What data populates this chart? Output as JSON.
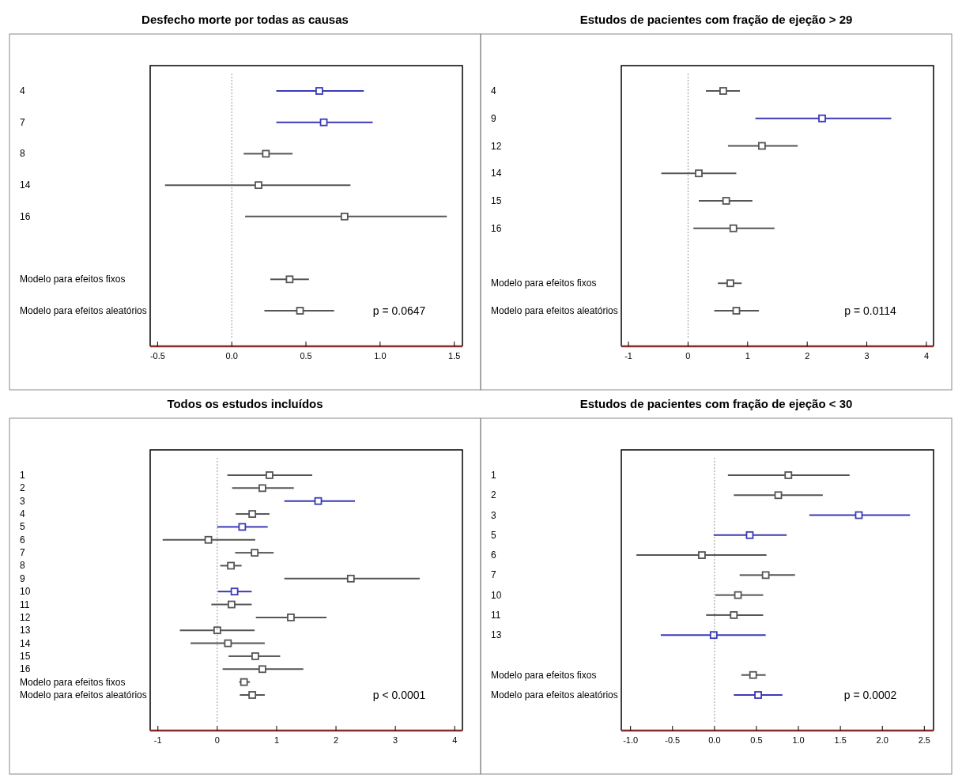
{
  "chart_data": [
    {
      "type": "scatter",
      "orientation": "horizontal",
      "title": "Desfecho morte por todas as causas",
      "marker": "square",
      "categories": [
        "4",
        "7",
        "8",
        "14",
        "16",
        null,
        "Modelo para efeitos fixos",
        "Modelo para efeitos aleatórios"
      ],
      "series": [
        {
          "color": "#3a3ab8",
          "values": [
            0.59,
            0.62,
            null,
            null,
            null,
            null,
            null,
            null
          ],
          "errors": [
            [
              0.3,
              0.89
            ],
            [
              0.3,
              0.95
            ],
            null,
            null,
            null,
            null,
            null,
            null
          ]
        },
        {
          "color": "#555555",
          "values": [
            null,
            null,
            0.23,
            0.18,
            0.76,
            null,
            0.39,
            0.46
          ],
          "errors": [
            null,
            null,
            [
              0.08,
              0.41
            ],
            [
              -0.45,
              0.8
            ],
            [
              0.09,
              1.45
            ],
            null,
            [
              0.26,
              0.52
            ],
            [
              0.22,
              0.69
            ]
          ]
        }
      ],
      "xlim": [
        -0.55,
        1.555
      ],
      "xticks": [
        -0.5,
        {
          "value": 0,
          "label": "0.0"
        },
        0.5,
        {
          "value": 1,
          "label": "1.0"
        },
        1.5
      ],
      "ref_lines": [
        {
          "axis": "x",
          "value": 0,
          "line_style": "dotted",
          "color": "#999999"
        }
      ],
      "annotations": [
        "p = 0.0647"
      ]
    },
    {
      "type": "scatter",
      "orientation": "horizontal",
      "title": "Estudos de pacientes com fração de ejeção > 29",
      "marker": "square",
      "categories": [
        "4",
        "9",
        "12",
        "14",
        "15",
        "16",
        null,
        "Modelo para efeitos fixos",
        "Modelo para efeitos aleatórios"
      ],
      "series": [
        {
          "color": "#3a3ab8",
          "values": [
            null,
            2.25,
            null,
            null,
            null,
            null,
            null,
            null,
            null
          ],
          "errors": [
            null,
            [
              1.13,
              3.41
            ],
            null,
            null,
            null,
            null,
            null,
            null,
            null
          ]
        },
        {
          "color": "#555555",
          "values": [
            0.59,
            null,
            1.24,
            0.18,
            0.64,
            0.76,
            null,
            0.71,
            0.81
          ],
          "errors": [
            [
              0.3,
              0.87
            ],
            null,
            [
              0.67,
              1.84
            ],
            [
              -0.45,
              0.81
            ],
            [
              0.18,
              1.08
            ],
            [
              0.09,
              1.45
            ],
            null,
            [
              0.5,
              0.9
            ],
            [
              0.44,
              1.19
            ]
          ]
        }
      ],
      "xlim": [
        -1.12,
        4.12
      ],
      "xticks": [
        -1,
        0,
        1,
        2,
        3,
        4
      ],
      "ref_lines": [
        {
          "axis": "x",
          "value": 0,
          "line_style": "dotted",
          "color": "#999999"
        }
      ],
      "annotations": [
        "p = 0.0114"
      ]
    },
    {
      "type": "scatter",
      "orientation": "horizontal",
      "title": "Todos os estudos incluídos",
      "marker": "square",
      "categories": [
        "1",
        "2",
        "3",
        "4",
        "5",
        "6",
        "7",
        "8",
        "9",
        "10",
        "11",
        "12",
        "13",
        "14",
        "15",
        "16",
        "Modelo para efeitos fixos",
        "Modelo para efeitos aleatórios"
      ],
      "series": [
        {
          "color": "#3a3ab8",
          "values": [
            null,
            null,
            1.7,
            null,
            0.42,
            null,
            null,
            null,
            null,
            0.29,
            null,
            null,
            null,
            null,
            null,
            null,
            null,
            null
          ],
          "errors": [
            null,
            null,
            [
              1.13,
              2.32
            ],
            null,
            [
              0.0,
              0.85
            ],
            null,
            null,
            null,
            null,
            [
              0.01,
              0.58
            ],
            null,
            null,
            null,
            null,
            null,
            null,
            null,
            null
          ]
        },
        {
          "color": "#555555",
          "values": [
            0.88,
            0.76,
            null,
            0.59,
            null,
            -0.15,
            0.63,
            0.23,
            2.25,
            null,
            0.24,
            1.24,
            0.0,
            0.18,
            0.64,
            0.76,
            0.45,
            0.59
          ],
          "errors": [
            [
              0.17,
              1.6
            ],
            [
              0.25,
              1.29
            ],
            null,
            [
              0.31,
              0.88
            ],
            null,
            [
              -0.92,
              0.64
            ],
            [
              0.3,
              0.95
            ],
            [
              0.05,
              0.41
            ],
            [
              1.13,
              3.41
            ],
            null,
            [
              -0.1,
              0.58
            ],
            [
              0.65,
              1.84
            ],
            [
              -0.63,
              0.63
            ],
            [
              -0.45,
              0.8
            ],
            [
              0.19,
              1.06
            ],
            [
              0.09,
              1.45
            ],
            [
              0.37,
              0.55
            ],
            [
              0.38,
              0.8
            ]
          ]
        }
      ],
      "xlim": [
        -1.13,
        4.13
      ],
      "xticks": [
        -1,
        0,
        1,
        2,
        3,
        4
      ],
      "ref_lines": [
        {
          "axis": "x",
          "value": 0,
          "line_style": "dotted",
          "color": "#999999"
        }
      ],
      "annotations": [
        "p < 0.0001"
      ]
    },
    {
      "type": "scatter",
      "orientation": "horizontal",
      "title": "Estudos de pacientes com fração de ejeção < 30",
      "marker": "square",
      "categories": [
        "1",
        "2",
        "3",
        "5",
        "6",
        "7",
        "10",
        "11",
        "13",
        null,
        "Modelo para efeitos fixos",
        "Modelo para efeitos aleatórios"
      ],
      "series": [
        {
          "color": "#3a3ab8",
          "values": [
            null,
            null,
            1.72,
            0.42,
            null,
            null,
            null,
            null,
            -0.01,
            null,
            null,
            0.52
          ],
          "errors": [
            null,
            null,
            [
              1.13,
              2.33
            ],
            [
              -0.01,
              0.86
            ],
            null,
            null,
            null,
            null,
            [
              -0.64,
              0.61
            ],
            null,
            null,
            [
              0.23,
              0.81
            ]
          ]
        },
        {
          "color": "#555555",
          "values": [
            0.88,
            0.76,
            null,
            null,
            -0.15,
            0.61,
            0.28,
            0.23,
            null,
            null,
            0.46,
            null
          ],
          "errors": [
            [
              0.16,
              1.61
            ],
            [
              0.23,
              1.29
            ],
            null,
            null,
            [
              -0.93,
              0.62
            ],
            [
              0.3,
              0.96
            ],
            [
              0.01,
              0.58
            ],
            [
              -0.1,
              0.58
            ],
            null,
            null,
            [
              0.32,
              0.61
            ],
            null
          ]
        }
      ],
      "xlim": [
        -1.11,
        2.61
      ],
      "xticks": [
        {
          "value": -1,
          "label": "-1.0"
        },
        -0.5,
        {
          "value": 0,
          "label": "0.0"
        },
        0.5,
        {
          "value": 1,
          "label": "1.0"
        },
        1.5,
        {
          "value": 2,
          "label": "2.0"
        },
        2.5
      ],
      "ref_lines": [
        {
          "axis": "x",
          "value": 0,
          "line_style": "dotted",
          "color": "#999999"
        }
      ],
      "annotations": [
        "p = 0.0002"
      ]
    }
  ]
}
